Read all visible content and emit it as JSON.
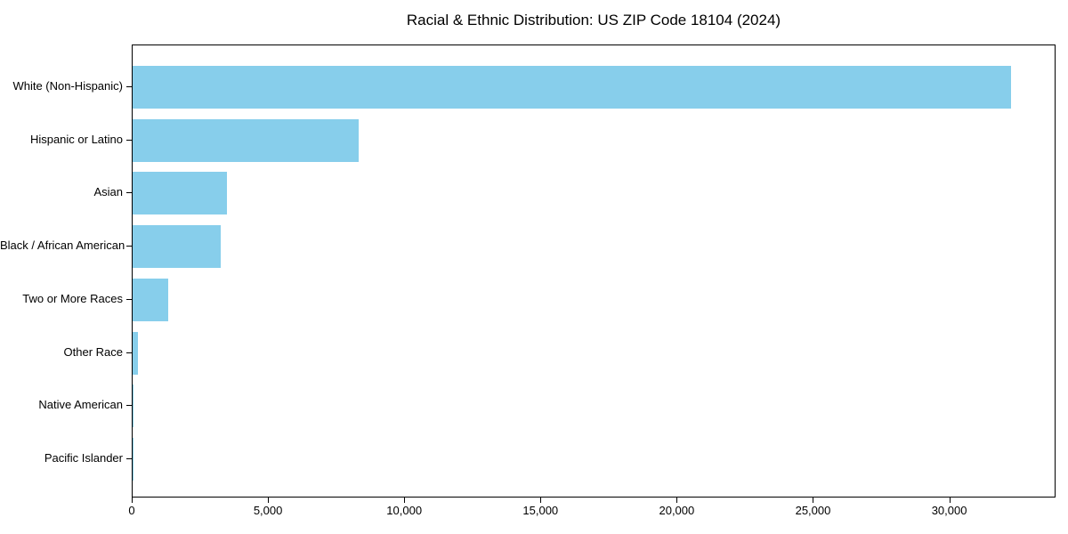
{
  "chart_data": {
    "type": "bar",
    "orientation": "horizontal",
    "title": "Racial & Ethnic Distribution: US ZIP Code 18104 (2024)",
    "categories": [
      "White (Non-Hispanic)",
      "Hispanic or Latino",
      "Asian",
      "Black / African American",
      "Two or More Races",
      "Other Race",
      "Native American",
      "Pacific Islander"
    ],
    "values": [
      32290,
      8310,
      3480,
      3255,
      1295,
      180,
      42,
      12
    ],
    "xlabel": "",
    "ylabel": "",
    "xlim": [
      0,
      33900
    ],
    "xticks": [
      0,
      5000,
      10000,
      15000,
      20000,
      25000,
      30000
    ],
    "xtick_labels": [
      "0",
      "5,000",
      "10,000",
      "15,000",
      "20,000",
      "25,000",
      "30,000"
    ],
    "bar_color": "#87CEEB",
    "grid": false,
    "legend": null,
    "frame": true
  }
}
